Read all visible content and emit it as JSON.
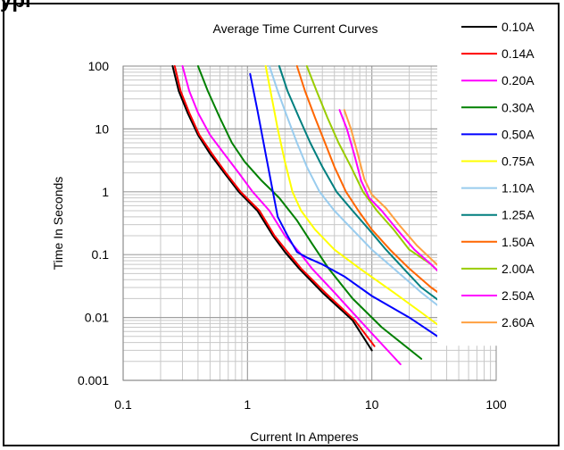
{
  "heading": "ypi",
  "chart_data": {
    "type": "line",
    "title": "Average Time Current Curves",
    "xlabel": "Current In Amperes",
    "ylabel": "Time In Seconds",
    "x_scale": "log",
    "y_scale": "log",
    "xlim": [
      0.1,
      100
    ],
    "ylim": [
      0.001,
      100
    ],
    "x_ticks": [
      "0.1",
      "1",
      "10",
      "100"
    ],
    "y_ticks": [
      "100",
      "10",
      "1",
      "0.1",
      "0.01",
      "0.001"
    ],
    "grid": true,
    "legend_position": "right",
    "series": [
      {
        "name": "0.10A",
        "color": "#000000",
        "points": [
          [
            0.25,
            100
          ],
          [
            0.28,
            40
          ],
          [
            0.33,
            18
          ],
          [
            0.4,
            8
          ],
          [
            0.5,
            4
          ],
          [
            0.65,
            2
          ],
          [
            0.85,
            1
          ],
          [
            1.2,
            0.5
          ],
          [
            1.6,
            0.2
          ],
          [
            2,
            0.11
          ],
          [
            2.6,
            0.06
          ],
          [
            4,
            0.025
          ],
          [
            7,
            0.009
          ],
          [
            10,
            0.003
          ]
        ]
      },
      {
        "name": "0.14A",
        "color": "#ff0000",
        "points": [
          [
            0.26,
            100
          ],
          [
            0.29,
            40
          ],
          [
            0.34,
            18
          ],
          [
            0.41,
            8
          ],
          [
            0.52,
            4
          ],
          [
            0.67,
            2
          ],
          [
            0.88,
            1
          ],
          [
            1.25,
            0.5
          ],
          [
            1.65,
            0.2
          ],
          [
            2.1,
            0.11
          ],
          [
            2.7,
            0.06
          ],
          [
            4.2,
            0.025
          ],
          [
            7.3,
            0.009
          ],
          [
            10.5,
            0.0035
          ]
        ]
      },
      {
        "name": "0.20A",
        "color": "#ff00ff",
        "points": [
          [
            0.3,
            100
          ],
          [
            0.34,
            40
          ],
          [
            0.4,
            18
          ],
          [
            0.5,
            8
          ],
          [
            0.65,
            4
          ],
          [
            0.85,
            2
          ],
          [
            1.1,
            1
          ],
          [
            1.5,
            0.5
          ],
          [
            2,
            0.2
          ],
          [
            2.6,
            0.11
          ],
          [
            3.3,
            0.06
          ],
          [
            5,
            0.025
          ],
          [
            9,
            0.007
          ],
          [
            17,
            0.0018
          ]
        ]
      },
      {
        "name": "0.30A",
        "color": "#008000",
        "points": [
          [
            0.4,
            100
          ],
          [
            0.48,
            40
          ],
          [
            0.6,
            15
          ],
          [
            0.75,
            6
          ],
          [
            0.95,
            3
          ],
          [
            1.3,
            1.5
          ],
          [
            1.8,
            0.8
          ],
          [
            2.5,
            0.35
          ],
          [
            3.3,
            0.15
          ],
          [
            4.5,
            0.06
          ],
          [
            7,
            0.02
          ],
          [
            12,
            0.007
          ],
          [
            25,
            0.0022
          ]
        ]
      },
      {
        "name": "0.50A",
        "color": "#0000ff",
        "points": [
          [
            1.05,
            75
          ],
          [
            1.2,
            20
          ],
          [
            1.4,
            4
          ],
          [
            1.6,
            1
          ],
          [
            1.75,
            0.4
          ],
          [
            2.1,
            0.2
          ],
          [
            2.5,
            0.11
          ],
          [
            3,
            0.09
          ],
          [
            4,
            0.07
          ],
          [
            6,
            0.045
          ],
          [
            10,
            0.022
          ],
          [
            20,
            0.01
          ],
          [
            40,
            0.004
          ]
        ]
      },
      {
        "name": "0.75A",
        "color": "#ffff00",
        "points": [
          [
            1.4,
            100
          ],
          [
            1.55,
            35
          ],
          [
            1.75,
            10
          ],
          [
            2,
            3
          ],
          [
            2.3,
            1
          ],
          [
            2.7,
            0.5
          ],
          [
            3.5,
            0.25
          ],
          [
            5,
            0.12
          ],
          [
            8,
            0.06
          ],
          [
            15,
            0.025
          ],
          [
            25,
            0.012
          ],
          [
            40,
            0.006
          ]
        ]
      },
      {
        "name": "1.10A",
        "color": "#99ccee",
        "points": [
          [
            1.5,
            100
          ],
          [
            1.75,
            40
          ],
          [
            2.1,
            15
          ],
          [
            2.5,
            6
          ],
          [
            3,
            2.5
          ],
          [
            3.8,
            1
          ],
          [
            5,
            0.5
          ],
          [
            7,
            0.25
          ],
          [
            10,
            0.12
          ],
          [
            15,
            0.06
          ],
          [
            25,
            0.025
          ],
          [
            40,
            0.012
          ]
        ]
      },
      {
        "name": "1.25A",
        "color": "#007f7f",
        "points": [
          [
            1.8,
            100
          ],
          [
            2.1,
            40
          ],
          [
            2.6,
            15
          ],
          [
            3.2,
            6
          ],
          [
            4,
            2.5
          ],
          [
            5.2,
            1
          ],
          [
            7,
            0.5
          ],
          [
            9.5,
            0.25
          ],
          [
            13,
            0.12
          ],
          [
            18,
            0.06
          ],
          [
            25,
            0.03
          ],
          [
            40,
            0.015
          ]
        ]
      },
      {
        "name": "1.50A",
        "color": "#ff6600",
        "points": [
          [
            2.5,
            100
          ],
          [
            2.9,
            40
          ],
          [
            3.5,
            15
          ],
          [
            4.2,
            6
          ],
          [
            5,
            2.5
          ],
          [
            6.2,
            1
          ],
          [
            7.8,
            0.5
          ],
          [
            10,
            0.25
          ],
          [
            14,
            0.12
          ],
          [
            20,
            0.06
          ],
          [
            30,
            0.03
          ],
          [
            40,
            0.02
          ]
        ]
      },
      {
        "name": "2.00A",
        "color": "#99cc00",
        "points": [
          [
            3,
            100
          ],
          [
            3.6,
            40
          ],
          [
            4.4,
            15
          ],
          [
            5.4,
            6
          ],
          [
            6.8,
            2.5
          ],
          [
            8.5,
            1
          ],
          [
            11,
            0.5
          ],
          [
            15,
            0.25
          ],
          [
            20,
            0.12
          ],
          [
            30,
            0.07
          ],
          [
            40,
            0.04
          ]
        ]
      },
      {
        "name": "2.50A",
        "color": "#ff00ff",
        "points": [
          [
            5.5,
            20
          ],
          [
            6.3,
            10
          ],
          [
            7.2,
            4
          ],
          [
            8.2,
            1.5
          ],
          [
            9.5,
            0.8
          ],
          [
            12,
            0.5
          ],
          [
            16,
            0.25
          ],
          [
            22,
            0.12
          ],
          [
            30,
            0.07
          ],
          [
            40,
            0.04
          ]
        ]
      },
      {
        "name": "2.60A",
        "color": "#ffa040",
        "points": [
          [
            6,
            20
          ],
          [
            6.8,
            10
          ],
          [
            7.7,
            4
          ],
          [
            8.7,
            1.6
          ],
          [
            10,
            0.9
          ],
          [
            13,
            0.55
          ],
          [
            17,
            0.28
          ],
          [
            23,
            0.14
          ],
          [
            31,
            0.08
          ],
          [
            40,
            0.05
          ]
        ]
      }
    ]
  }
}
